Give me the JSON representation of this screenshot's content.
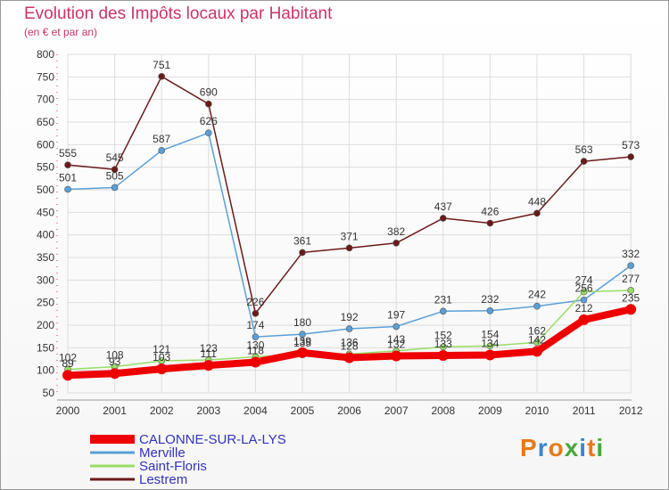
{
  "header": {
    "title": "Evolution des Impôts locaux par Habitant",
    "subtitle": "(en € et par an)"
  },
  "chart_data": {
    "type": "line",
    "x": [
      "2000",
      "2001",
      "2002",
      "2003",
      "2004",
      "2005",
      "2006",
      "2007",
      "2008",
      "2009",
      "2010",
      "2011",
      "2012"
    ],
    "ylim": [
      50,
      800
    ],
    "yticks": [
      50,
      100,
      150,
      200,
      250,
      300,
      350,
      400,
      450,
      500,
      550,
      600,
      650,
      700,
      750,
      800
    ],
    "grid": true,
    "legend_position": "bottom-left",
    "series": [
      {
        "name": "Lestrem",
        "color": "#6b1a1a",
        "values": [
          555,
          545,
          751,
          690,
          226,
          361,
          371,
          382,
          437,
          426,
          448,
          563,
          573
        ],
        "labels": [
          "555",
          "545",
          "751",
          "690",
          "226",
          "361",
          "371",
          "382",
          "437",
          "426",
          "448",
          "563",
          "573"
        ]
      },
      {
        "name": "Merville",
        "color": "#5b9fd6",
        "values": [
          501,
          505,
          587,
          626,
          174,
          180,
          192,
          197,
          231,
          232,
          242,
          256,
          332
        ],
        "labels": [
          "501",
          "505",
          "587",
          "626",
          "174",
          "180",
          "192",
          "197",
          "231",
          "232",
          "242",
          "256",
          "332"
        ]
      },
      {
        "name": "Saint-Floris",
        "color": "#99dd66",
        "values": [
          102,
          108,
          121,
          123,
          130,
          135,
          136,
          143,
          152,
          154,
          162,
          274,
          277
        ],
        "labels": [
          "102",
          "108",
          "121",
          "123",
          "130",
          "135",
          "136",
          "143",
          "152",
          "154",
          "162",
          "274",
          "277"
        ]
      },
      {
        "name": "CALONNE-SUR-LA-LYS",
        "color": "#ee0000",
        "values": [
          89,
          93,
          103,
          111,
          118,
          139,
          128,
          132,
          133,
          134,
          142,
          212,
          235
        ],
        "labels": [
          "89",
          "93",
          "103",
          "111",
          "118",
          "139",
          "128",
          "132",
          "133",
          "134",
          "142",
          "212",
          "235"
        ]
      }
    ],
    "legend": [
      {
        "name": "CALONNE-SUR-LA-LYS",
        "color": "#ee0000",
        "text_color": "#3333bb"
      },
      {
        "name": "Merville",
        "color": "#5b9fd6",
        "text_color": "#3333bb"
      },
      {
        "name": "Saint-Floris",
        "color": "#99dd66",
        "text_color": "#3333bb"
      },
      {
        "name": "Lestrem",
        "color": "#6b1a1a",
        "text_color": "#3333bb"
      }
    ]
  },
  "branding": {
    "logo_text": "Proxiti",
    "logo_colors": [
      "#e87a1a",
      "#3a86c8",
      "#e87a1a",
      "#4aa83a",
      "#3a86c8",
      "#e87a1a",
      "#4aa83a"
    ]
  }
}
